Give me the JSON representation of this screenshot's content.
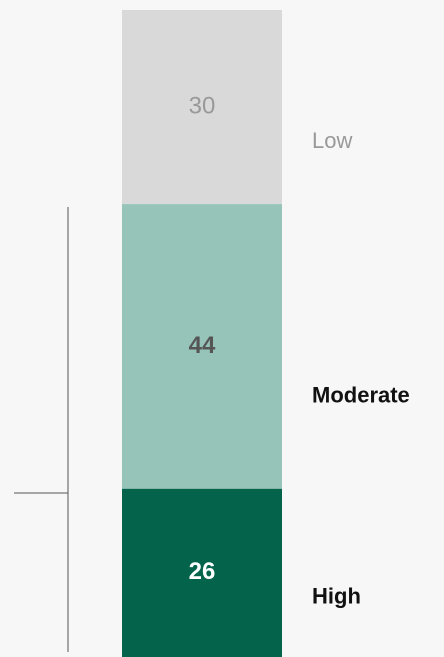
{
  "chart_data": {
    "type": "stacked-bar",
    "series": [
      {
        "name": "Low",
        "values": [
          30
        ],
        "color": "#d9d9d9",
        "label_color": "#999999",
        "bold": false
      },
      {
        "name": "Moderate",
        "values": [
          44
        ],
        "color": "#96c4b8",
        "label_color": "#555555",
        "bold": true
      },
      {
        "name": "High",
        "values": [
          26
        ],
        "color": "#03634b",
        "label_color": "#ffffff",
        "bold": true
      }
    ]
  }
}
